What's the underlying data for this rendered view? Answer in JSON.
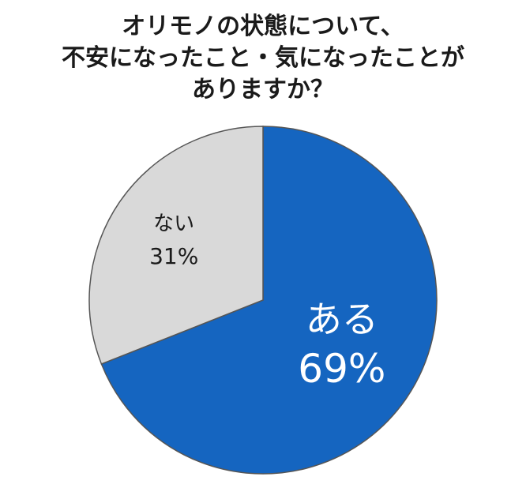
{
  "chart_data": {
    "type": "pie",
    "title_lines": [
      "オリモノの状態について、",
      "不安になったこと・気になったことが",
      "ありますか？"
    ],
    "slices": [
      {
        "label": "ある",
        "value": 69,
        "value_text": "69%",
        "color": "#1565c0",
        "text_color": "#ffffff"
      },
      {
        "label": "ない",
        "value": 31,
        "value_text": "31%",
        "color": "#d9d9d9",
        "text_color": "#1a1a1a"
      }
    ],
    "start_angle": "12 o'clock",
    "direction": "clockwise"
  }
}
